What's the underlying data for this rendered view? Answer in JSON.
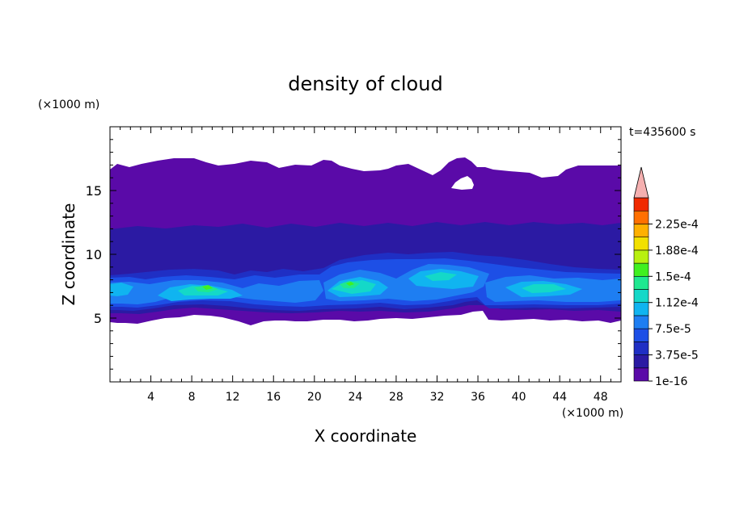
{
  "chart_data": {
    "type": "heatmap",
    "title": "density of cloud",
    "xlabel": "X coordinate",
    "ylabel": "Z coordinate",
    "x_unit": "(×1000 m)",
    "y_unit": "(×1000 m)",
    "time_label": "t=435600 s",
    "xlim": [
      0,
      50
    ],
    "ylim": [
      0,
      20
    ],
    "x_ticks": [
      4,
      8,
      12,
      16,
      20,
      24,
      28,
      32,
      36,
      40,
      44,
      48
    ],
    "y_ticks": [
      5,
      10,
      15
    ],
    "colorbar": {
      "labels": [
        "1e-16",
        "3.75e-5",
        "7.5e-5",
        "1.12e-4",
        "1.5e-4",
        "1.88e-4",
        "2.25e-4"
      ],
      "levels": [
        0,
        1.875e-05,
        3.75e-05,
        5.625e-05,
        7.5e-05,
        9.375e-05,
        0.0001125,
        0.00013125,
        0.00015,
        0.00016875,
        0.0001875,
        0.00020625,
        0.000225,
        0.00024375
      ],
      "colors": [
        "#5a0aa8",
        "#2b1aa3",
        "#1f2fc4",
        "#1d4fe6",
        "#1e7ef2",
        "#10b4f0",
        "#14d8c8",
        "#1fe890",
        "#40f020",
        "#b8f010",
        "#f2e000",
        "#ffb000",
        "#ff7000",
        "#f02a00"
      ],
      "extend_color": "#f5b0b0"
    }
  }
}
